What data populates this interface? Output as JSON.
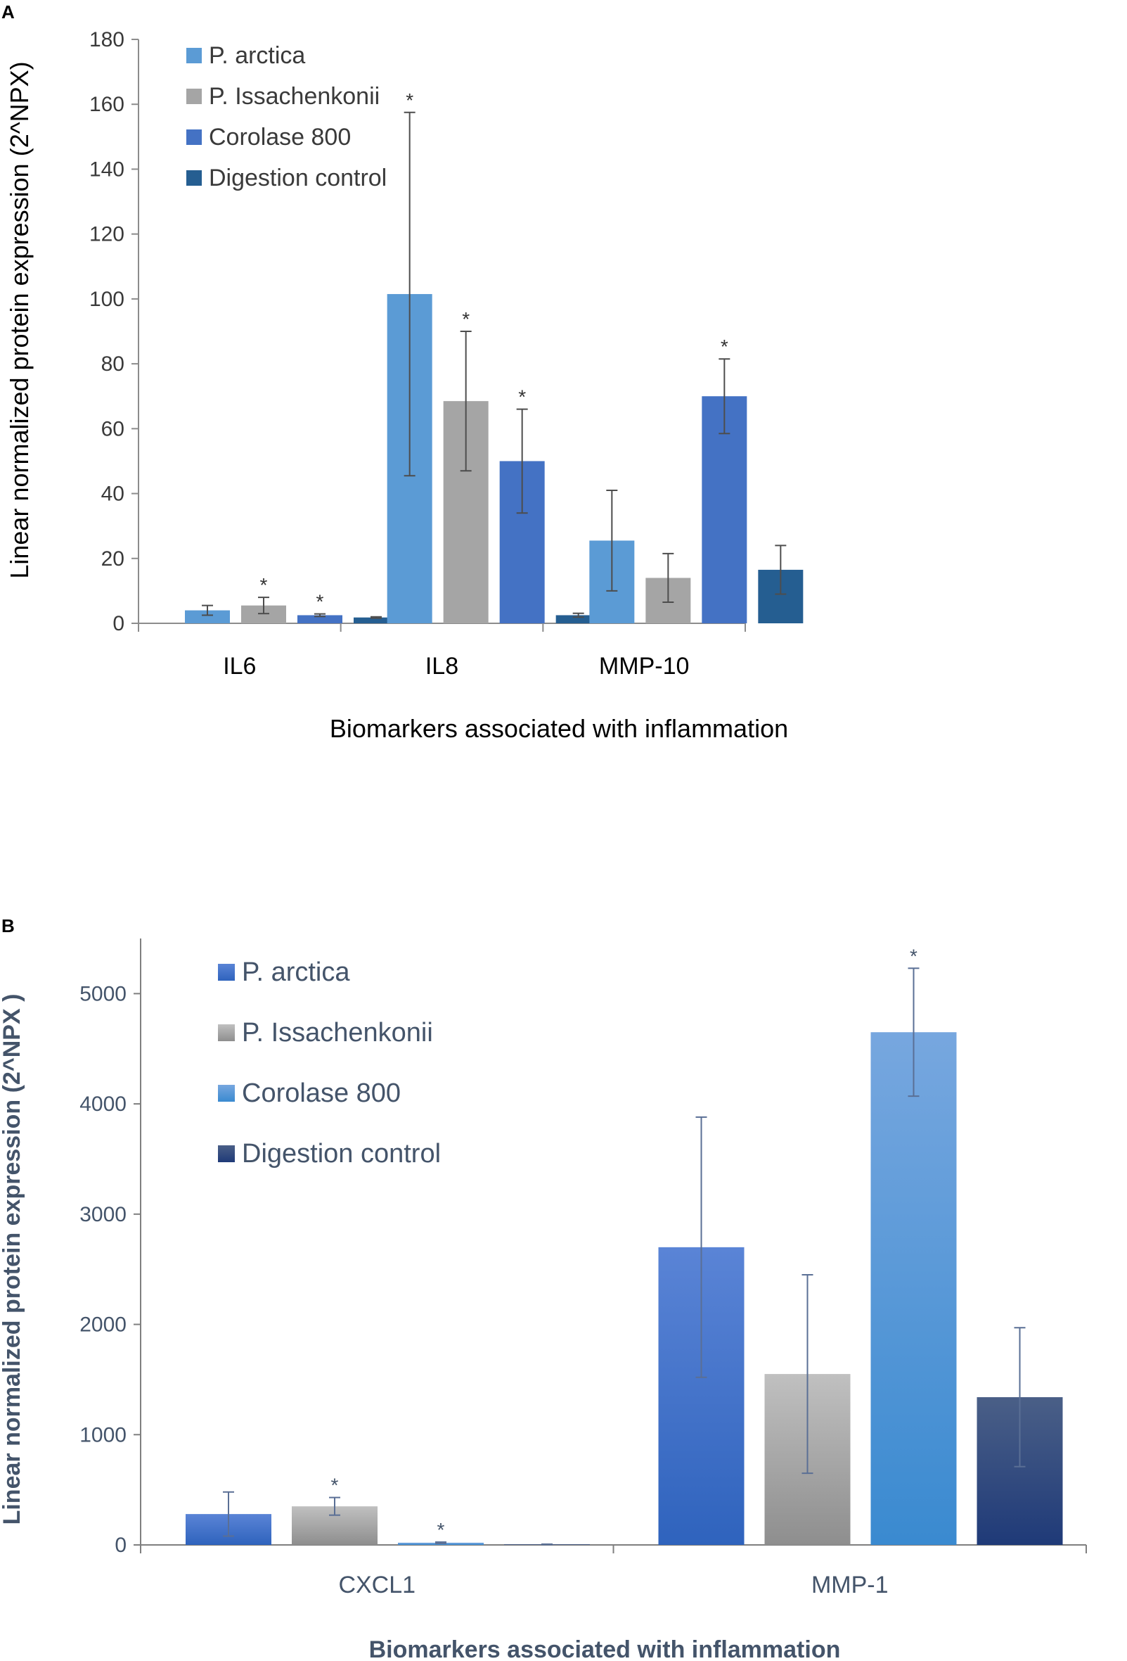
{
  "chart_data": [
    {
      "panel": "A",
      "type": "bar",
      "categories": [
        "IL6",
        "IL8",
        "MMP-10"
      ],
      "series": [
        {
          "name": "P. arctica",
          "color": "#5b9bd5",
          "values": [
            4,
            101.5,
            25.5
          ],
          "errors": [
            1.5,
            56,
            15.5
          ],
          "significant": [
            false,
            true,
            false
          ]
        },
        {
          "name": "P. Issachenkonii",
          "color": "#a5a5a5",
          "values": [
            5.5,
            68.5,
            14
          ],
          "errors": [
            2.5,
            21.5,
            7.5
          ],
          "significant": [
            true,
            true,
            false
          ]
        },
        {
          "name": "Corolase  800",
          "color": "#4472c4",
          "values": [
            2.5,
            50,
            70
          ],
          "errors": [
            0.4,
            16,
            11.5
          ],
          "significant": [
            true,
            true,
            true
          ]
        },
        {
          "name": "Digestion control",
          "color": "#255e91",
          "values": [
            1.8,
            2.5,
            16.5
          ],
          "errors": [
            0.2,
            0.6,
            7.5
          ],
          "significant": [
            false,
            false,
            false
          ]
        }
      ],
      "title": "",
      "xlabel": "Biomarkers associated with inflammation",
      "ylabel": "Linear normalized protein expression (2^NPX)",
      "ylim": [
        0,
        180
      ],
      "yticks": [
        0,
        20,
        40,
        60,
        80,
        100,
        120,
        140,
        160,
        180
      ],
      "significance_marker": "*",
      "legend_position": "top-left",
      "grid": false
    },
    {
      "panel": "B",
      "type": "bar",
      "categories": [
        "CXCL1",
        "MMP-1"
      ],
      "series": [
        {
          "name": "P. arctica",
          "color": "#4472c4",
          "values": [
            280,
            2700
          ],
          "errors": [
            200,
            1180
          ],
          "significant": [
            false,
            false
          ]
        },
        {
          "name": "P. Issachenkonii",
          "color": "#a5a5a5",
          "values": [
            350,
            1550
          ],
          "errors": [
            80,
            900
          ],
          "significant": [
            true,
            false
          ]
        },
        {
          "name": "Corolase  800",
          "color": "#5b9bd5",
          "values": [
            20,
            4650
          ],
          "errors": [
            6,
            580
          ],
          "significant": [
            true,
            true
          ]
        },
        {
          "name": "Digestion control",
          "color": "#264478",
          "values": [
            5,
            1340
          ],
          "errors": [
            2,
            630
          ],
          "significant": [
            false,
            false
          ]
        }
      ],
      "title": "",
      "xlabel": "Biomarkers associated with inflammation",
      "ylabel": "Linear normalized  protein expression (2^NPX )",
      "ylim": [
        0,
        5500
      ],
      "yticks": [
        0,
        1000,
        2000,
        3000,
        4000,
        5000
      ],
      "significance_marker": "*",
      "legend_position": "top-left",
      "grid": false
    }
  ]
}
